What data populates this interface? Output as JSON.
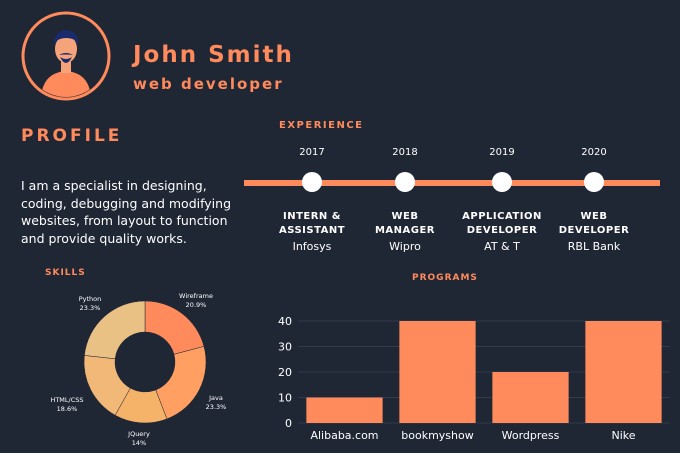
{
  "header": {
    "name": "John Smith",
    "role": "web developer"
  },
  "profile": {
    "title": "PROFILE",
    "text": "I am a specialist in designing, coding, debugging and modifying websites, from layout to function and provide quality works."
  },
  "experience": {
    "title": "EXPERIENCE",
    "items": [
      {
        "year": "2017",
        "role": "INTERN &\nASSISTANT",
        "company": "Infosys"
      },
      {
        "year": "2018",
        "role": "WEB\nMANAGER",
        "company": "Wipro"
      },
      {
        "year": "2019",
        "role": "APPLICATION\nDEVELOPER",
        "company": "AT & T"
      },
      {
        "year": "2020",
        "role": "WEB\nDEVELOPER",
        "company": "RBL Bank"
      }
    ]
  },
  "skills": {
    "title": "SKILLS"
  },
  "programs": {
    "title": "PROGRAMS"
  },
  "colors": {
    "background": "#1f2634",
    "accent": "#ff8a5b",
    "pie": [
      "#ff8a5b",
      "#ffa062",
      "#f5b36a",
      "#f2b878",
      "#e9c184"
    ]
  },
  "chart_data": [
    {
      "type": "pie",
      "style": "donut",
      "categories": [
        "Wireframe",
        "Java",
        "JQuery",
        "HTML/CSS",
        "Python"
      ],
      "values": [
        20.9,
        23.3,
        14,
        18.6,
        23.3
      ],
      "labels": [
        "20.9%",
        "23.3%",
        "14%",
        "18.6%",
        "23.3%"
      ]
    },
    {
      "type": "bar",
      "categories": [
        "Alibaba.com",
        "bookmyshow",
        "Wordpress",
        "Nike"
      ],
      "values": [
        10,
        40,
        20,
        40
      ],
      "yticks": [
        0,
        10,
        20,
        30,
        40
      ],
      "ylim": [
        0,
        40
      ],
      "grid": true
    }
  ]
}
